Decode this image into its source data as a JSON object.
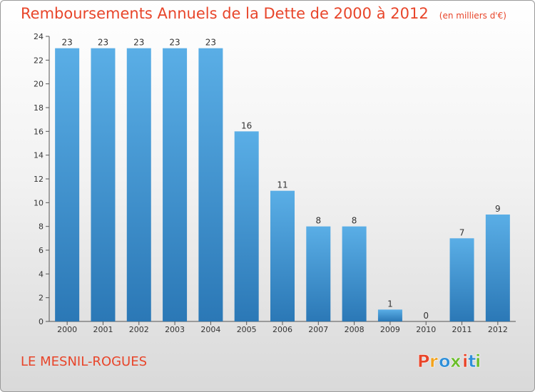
{
  "chart_data": {
    "type": "bar",
    "title": "Remboursements Annuels de la Dette de 2000 à 2012",
    "subtitle": "(en milliers d'€)",
    "categories": [
      "2000",
      "2001",
      "2002",
      "2003",
      "2004",
      "2005",
      "2006",
      "2007",
      "2008",
      "2009",
      "2010",
      "2011",
      "2012"
    ],
    "values": [
      23,
      23,
      23,
      23,
      23,
      16,
      11,
      8,
      8,
      1,
      0,
      7,
      9
    ],
    "ylim": [
      0,
      24
    ],
    "yticks": [
      0,
      2,
      4,
      6,
      8,
      10,
      12,
      14,
      16,
      18,
      20,
      22,
      24
    ],
    "grid": false,
    "legend": "none",
    "bar_color_top": "#5aaee6",
    "bar_color_bottom": "#2b78b6",
    "label_color": "#333333"
  },
  "footer": {
    "commune": "LE MESNIL-ROGUES",
    "brand": "Proxiti"
  },
  "colors": {
    "title": "#e8452a",
    "axis": "#555555",
    "brand_letters": [
      "#e8452a",
      "#f2a21b",
      "#2f8fd8",
      "#6bbd2b",
      "#e8452a",
      "#2f8fd8",
      "#6bbd2b"
    ]
  }
}
